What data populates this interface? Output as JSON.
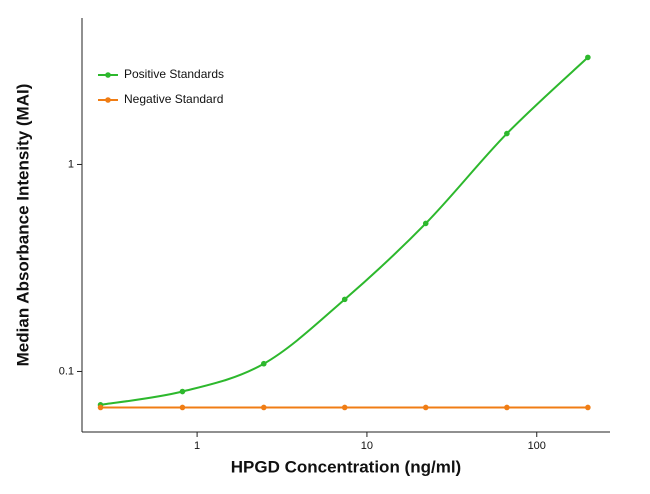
{
  "chart_data": {
    "type": "line",
    "xlabel": "HPGD Concentration (ng/ml)",
    "ylabel": "Median Absorbance Intensity (MAI)",
    "x": [
      0.27,
      0.82,
      2.47,
      7.4,
      22.2,
      66.7,
      200
    ],
    "series": [
      {
        "name": "Positive Standards",
        "color": "#2db82d",
        "values": [
          0.069,
          0.08,
          0.109,
          0.223,
          0.519,
          1.41,
          3.29
        ]
      },
      {
        "name": "Negative Standard",
        "color": "#f07d14",
        "values": [
          0.067,
          0.067,
          0.067,
          0.067,
          0.067,
          0.067,
          0.067
        ]
      }
    ],
    "xlim": [
      0.21,
      270
    ],
    "ylim": [
      0.051,
      5.1
    ],
    "xticks": [
      1,
      10,
      100
    ],
    "yticks": [
      0.1,
      1
    ],
    "xscale": "log",
    "yscale": "log",
    "legend": "upper left"
  }
}
